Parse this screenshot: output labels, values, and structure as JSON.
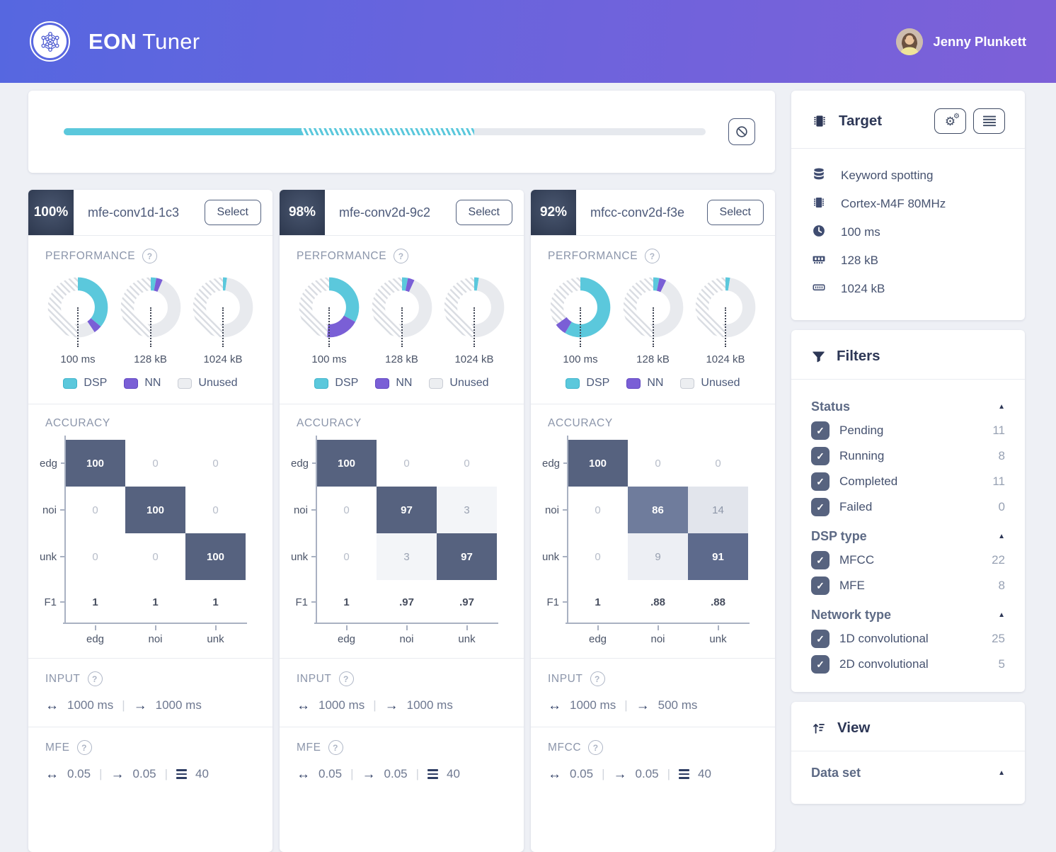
{
  "header": {
    "title_bold": "EON",
    "title_rest": "Tuner",
    "user_name": "Jenny Plunkett"
  },
  "progress": {
    "solid_pct": 37,
    "striped_pct": 27
  },
  "legend": {
    "dsp": "DSP",
    "nn": "NN",
    "unused": "Unused"
  },
  "colors": {
    "dsp": "#5bc8dc",
    "nn": "#7a5fd6",
    "unused": "#e8eaee",
    "hatch_line": "#d9dce2",
    "matrix_dark": "#56627f",
    "header_gradient_start": "#5667e0",
    "header_gradient_end": "#7d60d8"
  },
  "target": {
    "title": "Target",
    "buttons": [
      "settings-cogs-button",
      "list-button"
    ],
    "items": [
      {
        "icon": "database-icon",
        "label": "Keyword spotting"
      },
      {
        "icon": "microchip-icon",
        "label": "Cortex-M4F 80MHz"
      },
      {
        "icon": "clock-icon",
        "label": "100 ms"
      },
      {
        "icon": "ram-icon",
        "label": "128 kB"
      },
      {
        "icon": "rom-icon",
        "label": "1024 kB"
      }
    ]
  },
  "filters": {
    "title": "Filters",
    "sections": [
      {
        "label": "Status",
        "items": [
          {
            "label": "Pending",
            "count": "11",
            "checked": true
          },
          {
            "label": "Running",
            "count": "8",
            "checked": true
          },
          {
            "label": "Completed",
            "count": "11",
            "checked": true
          },
          {
            "label": "Failed",
            "count": "0",
            "checked": true
          }
        ]
      },
      {
        "label": "DSP type",
        "items": [
          {
            "label": "MFCC",
            "count": "22",
            "checked": true
          },
          {
            "label": "MFE",
            "count": "8",
            "checked": true
          }
        ]
      },
      {
        "label": "Network type",
        "items": [
          {
            "label": "1D convolutional",
            "count": "25",
            "checked": true
          },
          {
            "label": "2D convolutional",
            "count": "5",
            "checked": true
          }
        ]
      }
    ]
  },
  "view": {
    "title": "View",
    "sections": [
      {
        "label": "Data set"
      }
    ]
  },
  "models": [
    {
      "score": "100%",
      "name": "mfe-conv1d-1c3",
      "select_label": "Select",
      "performance_label": "PERFORMANCE",
      "donuts": [
        {
          "label": "100 ms",
          "dsp": 36,
          "nn": 4.5,
          "unused": 9.5
        },
        {
          "label": "128 kB",
          "dsp": 3,
          "nn": 3.5,
          "unused": 43.5
        },
        {
          "label": "1024 kB",
          "dsp": 2.2,
          "nn": 0,
          "unused": 47.8
        }
      ],
      "accuracy_label": "ACCURACY",
      "classes": [
        "edg",
        "noi",
        "unk"
      ],
      "matrix": [
        [
          100,
          0,
          0
        ],
        [
          0,
          100,
          0
        ],
        [
          0,
          0,
          100
        ]
      ],
      "f1_label": "F1",
      "f1": [
        "1",
        "1",
        "1"
      ],
      "input_label": "INPUT",
      "input_window": "1000 ms",
      "input_stride": "1000 ms",
      "dsp_label": "MFE",
      "dsp_values": [
        "0.05",
        "0.05",
        "40"
      ]
    },
    {
      "score": "98%",
      "name": "mfe-conv2d-9c2",
      "select_label": "Select",
      "performance_label": "PERFORMANCE",
      "donuts": [
        {
          "label": "100 ms",
          "dsp": 33,
          "nn": 18,
          "unused": 0
        },
        {
          "label": "128 kB",
          "dsp": 3.2,
          "nn": 3.6,
          "unused": 43.2
        },
        {
          "label": "1024 kB",
          "dsp": 2.5,
          "nn": 0,
          "unused": 47.5
        }
      ],
      "accuracy_label": "ACCURACY",
      "classes": [
        "edg",
        "noi",
        "unk"
      ],
      "matrix": [
        [
          100,
          0,
          0
        ],
        [
          0,
          97,
          3
        ],
        [
          0,
          3,
          97
        ]
      ],
      "f1_label": "F1",
      "f1": [
        "1",
        ".97",
        ".97"
      ],
      "input_label": "INPUT",
      "input_window": "1000 ms",
      "input_stride": "1000 ms",
      "dsp_label": "MFE",
      "dsp_values": [
        "0.05",
        "0.05",
        "40"
      ]
    },
    {
      "score": "92%",
      "name": "mfcc-conv2d-f3e",
      "select_label": "Select",
      "performance_label": "PERFORMANCE",
      "donuts": [
        {
          "label": "100 ms",
          "dsp": 58.5,
          "nn": 6.5,
          "unused": 0
        },
        {
          "label": "128 kB",
          "dsp": 3.3,
          "nn": 3.8,
          "unused": 42.9
        },
        {
          "label": "1024 kB",
          "dsp": 2.5,
          "nn": 0,
          "unused": 47.5
        }
      ],
      "accuracy_label": "ACCURACY",
      "classes": [
        "edg",
        "noi",
        "unk"
      ],
      "matrix": [
        [
          100,
          0,
          0
        ],
        [
          0,
          86,
          14
        ],
        [
          0,
          9,
          91
        ]
      ],
      "f1_label": "F1",
      "f1": [
        "1",
        ".88",
        ".88"
      ],
      "input_label": "INPUT",
      "input_window": "1000 ms",
      "input_stride": "500 ms",
      "dsp_label": "MFCC",
      "dsp_values": [
        "0.05",
        "0.05",
        "40"
      ]
    }
  ]
}
